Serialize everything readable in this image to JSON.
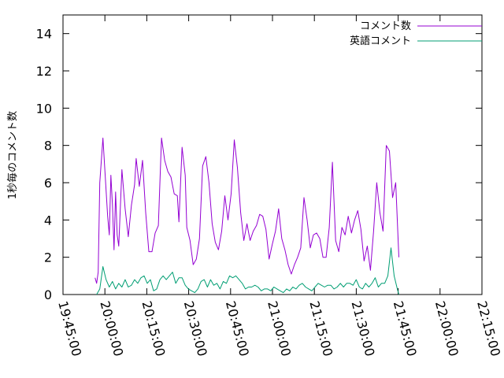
{
  "chart_data": {
    "type": "line",
    "title": "",
    "xlabel": "",
    "ylabel": "1秒毎のコメント数",
    "xlim": [
      "19:45:00",
      "22:15:00"
    ],
    "ylim": [
      0,
      15
    ],
    "x_ticks": [
      "19:45:00",
      "20:00:00",
      "20:15:00",
      "20:30:00",
      "20:45:00",
      "21:00:00",
      "21:15:00",
      "21:30:00",
      "21:45:00",
      "22:00:00",
      "22:15:00"
    ],
    "y_ticks": [
      0,
      2,
      4,
      6,
      8,
      10,
      12,
      14
    ],
    "grid": false,
    "legend_position": "top-right",
    "series": [
      {
        "name": "コメント数",
        "color": "#9400d3",
        "points": [
          [
            "19:56:28",
            0.9
          ],
          [
            "19:57:02",
            0.6
          ],
          [
            "19:57:36",
            1.2
          ],
          [
            "19:58:10",
            6.0
          ],
          [
            "19:59:18",
            8.4
          ],
          [
            "20:00:26",
            5.6
          ],
          [
            "20:01:00",
            4.2
          ],
          [
            "20:01:34",
            3.2
          ],
          [
            "20:02:08",
            6.4
          ],
          [
            "20:02:42",
            4.8
          ],
          [
            "20:03:16",
            2.4
          ],
          [
            "20:03:50",
            5.5
          ],
          [
            "20:04:24",
            3.2
          ],
          [
            "20:04:58",
            2.6
          ],
          [
            "20:06:06",
            6.7
          ],
          [
            "20:07:14",
            4.6
          ],
          [
            "20:08:22",
            3.1
          ],
          [
            "20:09:30",
            4.8
          ],
          [
            "20:10:38",
            5.9
          ],
          [
            "20:11:12",
            7.3
          ],
          [
            "20:12:20",
            5.8
          ],
          [
            "20:13:28",
            7.2
          ],
          [
            "20:14:36",
            4.4
          ],
          [
            "20:15:44",
            2.3
          ],
          [
            "20:16:52",
            2.3
          ],
          [
            "20:18:00",
            3.3
          ],
          [
            "20:19:08",
            3.7
          ],
          [
            "20:20:16",
            8.4
          ],
          [
            "20:21:24",
            7.2
          ],
          [
            "20:22:32",
            6.6
          ],
          [
            "20:23:40",
            6.3
          ],
          [
            "20:24:48",
            5.4
          ],
          [
            "20:25:56",
            5.3
          ],
          [
            "20:26:30",
            3.9
          ],
          [
            "20:27:38",
            7.9
          ],
          [
            "20:28:46",
            6.4
          ],
          [
            "20:29:20",
            3.6
          ],
          [
            "20:30:28",
            2.9
          ],
          [
            "20:31:36",
            1.6
          ],
          [
            "20:32:44",
            1.9
          ],
          [
            "20:33:52",
            3.0
          ],
          [
            "20:35:00",
            6.9
          ],
          [
            "20:36:08",
            7.4
          ],
          [
            "20:37:16",
            6.0
          ],
          [
            "20:38:24",
            3.8
          ],
          [
            "20:39:32",
            2.8
          ],
          [
            "20:40:40",
            2.4
          ],
          [
            "20:41:48",
            3.4
          ],
          [
            "20:42:56",
            5.3
          ],
          [
            "20:44:04",
            4.0
          ],
          [
            "20:45:12",
            5.4
          ],
          [
            "20:46:20",
            8.3
          ],
          [
            "20:47:28",
            6.8
          ],
          [
            "20:48:36",
            4.4
          ],
          [
            "20:49:44",
            2.9
          ],
          [
            "20:50:52",
            3.8
          ],
          [
            "20:52:00",
            2.9
          ],
          [
            "20:53:08",
            3.4
          ],
          [
            "20:54:16",
            3.7
          ],
          [
            "20:55:24",
            4.3
          ],
          [
            "20:56:32",
            4.2
          ],
          [
            "20:57:40",
            3.5
          ],
          [
            "20:58:48",
            1.9
          ],
          [
            "20:59:56",
            2.7
          ],
          [
            "21:01:04",
            3.4
          ],
          [
            "21:02:12",
            4.6
          ],
          [
            "21:03:20",
            3.0
          ],
          [
            "21:04:28",
            2.4
          ],
          [
            "21:05:36",
            1.6
          ],
          [
            "21:06:44",
            1.1
          ],
          [
            "21:07:52",
            1.6
          ],
          [
            "21:09:00",
            2.0
          ],
          [
            "21:10:08",
            2.5
          ],
          [
            "21:11:16",
            5.2
          ],
          [
            "21:12:24",
            4.0
          ],
          [
            "21:13:32",
            2.5
          ],
          [
            "21:14:40",
            3.2
          ],
          [
            "21:15:48",
            3.3
          ],
          [
            "21:16:56",
            3.0
          ],
          [
            "21:18:04",
            2.0
          ],
          [
            "21:19:12",
            2.0
          ],
          [
            "21:20:20",
            3.6
          ],
          [
            "21:21:28",
            7.1
          ],
          [
            "21:22:36",
            2.9
          ],
          [
            "21:23:44",
            2.3
          ],
          [
            "21:24:52",
            3.6
          ],
          [
            "21:26:00",
            3.2
          ],
          [
            "21:27:08",
            4.2
          ],
          [
            "21:28:16",
            3.3
          ],
          [
            "21:29:24",
            4.0
          ],
          [
            "21:30:32",
            4.5
          ],
          [
            "21:31:40",
            3.5
          ],
          [
            "21:32:48",
            1.8
          ],
          [
            "21:33:56",
            2.6
          ],
          [
            "21:35:04",
            1.3
          ],
          [
            "21:36:12",
            3.4
          ],
          [
            "21:37:20",
            6.0
          ],
          [
            "21:38:28",
            4.4
          ],
          [
            "21:39:36",
            3.4
          ],
          [
            "21:40:44",
            8.0
          ],
          [
            "21:41:52",
            7.7
          ],
          [
            "21:43:00",
            5.2
          ],
          [
            "21:44:08",
            6.0
          ],
          [
            "21:45:16",
            2.0
          ]
        ]
      },
      {
        "name": "英語コメント",
        "color": "#009e73",
        "points": [
          [
            "19:57:02",
            0.0
          ],
          [
            "19:58:10",
            0.3
          ],
          [
            "19:59:18",
            1.5
          ],
          [
            "20:00:26",
            0.8
          ],
          [
            "20:01:34",
            0.4
          ],
          [
            "20:02:42",
            0.7
          ],
          [
            "20:03:50",
            0.3
          ],
          [
            "20:04:58",
            0.6
          ],
          [
            "20:06:06",
            0.4
          ],
          [
            "20:07:14",
            0.8
          ],
          [
            "20:08:22",
            0.4
          ],
          [
            "20:09:30",
            0.5
          ],
          [
            "20:10:38",
            0.8
          ],
          [
            "20:11:46",
            0.6
          ],
          [
            "20:12:54",
            0.9
          ],
          [
            "20:14:02",
            1.0
          ],
          [
            "20:15:10",
            0.6
          ],
          [
            "20:16:18",
            0.8
          ],
          [
            "20:17:26",
            0.2
          ],
          [
            "20:18:34",
            0.3
          ],
          [
            "20:19:42",
            0.8
          ],
          [
            "20:20:50",
            1.0
          ],
          [
            "20:21:58",
            0.8
          ],
          [
            "20:23:06",
            1.0
          ],
          [
            "20:24:14",
            1.2
          ],
          [
            "20:25:22",
            0.6
          ],
          [
            "20:26:30",
            0.9
          ],
          [
            "20:27:38",
            0.9
          ],
          [
            "20:28:46",
            0.5
          ],
          [
            "20:29:54",
            0.3
          ],
          [
            "20:31:02",
            0.2
          ],
          [
            "20:32:10",
            0.1
          ],
          [
            "20:33:18",
            0.3
          ],
          [
            "20:34:26",
            0.7
          ],
          [
            "20:35:34",
            0.8
          ],
          [
            "20:36:42",
            0.4
          ],
          [
            "20:37:50",
            0.8
          ],
          [
            "20:38:58",
            0.5
          ],
          [
            "20:40:06",
            0.6
          ],
          [
            "20:41:14",
            0.3
          ],
          [
            "20:42:22",
            0.7
          ],
          [
            "20:43:30",
            0.6
          ],
          [
            "20:44:38",
            1.0
          ],
          [
            "20:45:46",
            0.9
          ],
          [
            "20:46:54",
            1.0
          ],
          [
            "20:48:02",
            0.8
          ],
          [
            "20:49:10",
            0.6
          ],
          [
            "20:50:18",
            0.3
          ],
          [
            "20:51:26",
            0.4
          ],
          [
            "20:52:34",
            0.4
          ],
          [
            "20:53:42",
            0.5
          ],
          [
            "20:54:50",
            0.4
          ],
          [
            "20:55:58",
            0.2
          ],
          [
            "20:57:06",
            0.3
          ],
          [
            "20:58:14",
            0.3
          ],
          [
            "20:59:22",
            0.2
          ],
          [
            "21:00:30",
            0.4
          ],
          [
            "21:01:38",
            0.3
          ],
          [
            "21:02:46",
            0.2
          ],
          [
            "21:03:54",
            0.1
          ],
          [
            "21:05:02",
            0.3
          ],
          [
            "21:06:10",
            0.2
          ],
          [
            "21:07:18",
            0.4
          ],
          [
            "21:08:26",
            0.3
          ],
          [
            "21:09:34",
            0.5
          ],
          [
            "21:10:42",
            0.6
          ],
          [
            "21:11:50",
            0.4
          ],
          [
            "21:12:58",
            0.3
          ],
          [
            "21:14:06",
            0.2
          ],
          [
            "21:15:14",
            0.4
          ],
          [
            "21:16:22",
            0.6
          ],
          [
            "21:17:30",
            0.5
          ],
          [
            "21:18:38",
            0.4
          ],
          [
            "21:19:46",
            0.5
          ],
          [
            "21:20:54",
            0.5
          ],
          [
            "21:22:02",
            0.3
          ],
          [
            "21:23:10",
            0.4
          ],
          [
            "21:24:18",
            0.6
          ],
          [
            "21:25:26",
            0.4
          ],
          [
            "21:26:34",
            0.6
          ],
          [
            "21:27:42",
            0.6
          ],
          [
            "21:28:50",
            0.5
          ],
          [
            "21:29:58",
            0.8
          ],
          [
            "21:31:06",
            0.4
          ],
          [
            "21:32:14",
            0.3
          ],
          [
            "21:33:22",
            0.6
          ],
          [
            "21:34:30",
            0.4
          ],
          [
            "21:35:38",
            0.6
          ],
          [
            "21:36:46",
            0.9
          ],
          [
            "21:37:54",
            0.4
          ],
          [
            "21:39:02",
            0.6
          ],
          [
            "21:40:10",
            0.6
          ],
          [
            "21:41:18",
            1.0
          ],
          [
            "21:42:26",
            2.5
          ],
          [
            "21:43:34",
            1.0
          ],
          [
            "21:44:42",
            0.3
          ],
          [
            "21:45:16",
            0.0
          ]
        ]
      }
    ]
  }
}
